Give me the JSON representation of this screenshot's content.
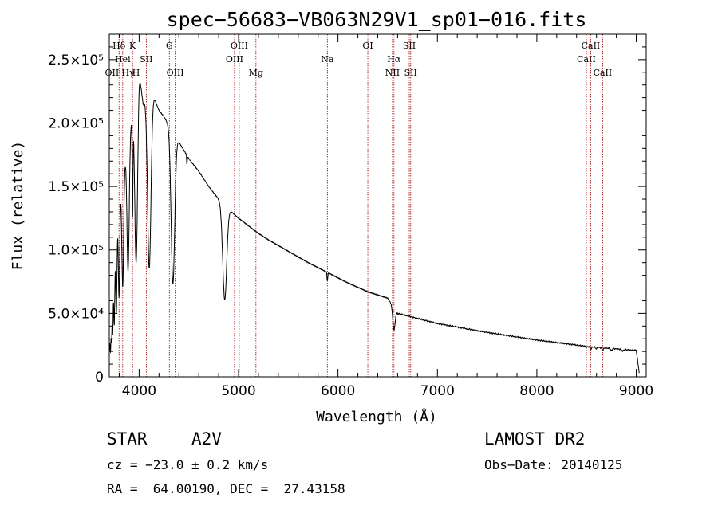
{
  "footer": {
    "object_class": "STAR",
    "subclass": "A2V",
    "survey": "LAMOST DR2",
    "redshift": "cz = −23.0 ± 0.2 km/s",
    "obs_date": "Obs−Date: 20140125",
    "coords": "RA =  64.00190, DEC =  27.43158"
  },
  "chart_data": {
    "type": "line",
    "title": "spec−56683−VB063N29V1_sp01−016.fits",
    "xlabel": "Wavelength (Å)",
    "ylabel": "Flux (relative)",
    "xlim": [
      3700,
      9100
    ],
    "ylim": [
      0,
      270000
    ],
    "x_ticks": [
      4000,
      5000,
      6000,
      7000,
      8000,
      9000
    ],
    "x_tick_labels": [
      "4000",
      "5000",
      "6000",
      "7000",
      "8000",
      "9000"
    ],
    "y_ticks": [
      0,
      50000,
      100000,
      150000,
      200000,
      250000
    ],
    "y_tick_labels": [
      "0",
      "5.0×10⁴",
      "1.0×10⁵",
      "1.5×10⁵",
      "2.0×10⁵",
      "2.5×10⁵"
    ],
    "spectral_lines": [
      {
        "label": "Hδ",
        "wavelength": 3798,
        "row": 1
      },
      {
        "label": "OII",
        "wavelength": 3727,
        "row": 3
      },
      {
        "label": "Hei",
        "wavelength": 3835,
        "row": 2
      },
      {
        "label": "Hγ",
        "wavelength": 3889,
        "row": 3
      },
      {
        "label": "K",
        "wavelength": 3934,
        "row": 1
      },
      {
        "label": "H",
        "wavelength": 3969,
        "row": 3
      },
      {
        "label": "SII",
        "wavelength": 4072,
        "row": 2
      },
      {
        "label": "G",
        "wavelength": 4304,
        "row": 1
      },
      {
        "label": "OIII",
        "wavelength": 4363,
        "row": 3
      },
      {
        "label": "OIII",
        "wavelength": 4959,
        "row": 2
      },
      {
        "label": "OIII",
        "wavelength": 5007,
        "row": 1
      },
      {
        "label": "Mg",
        "wavelength": 5175,
        "row": 3
      },
      {
        "label": "Na",
        "wavelength": 5893,
        "row": 2
      },
      {
        "label": "OI",
        "wavelength": 6300,
        "row": 1
      },
      {
        "label": "NII",
        "wavelength": 6548,
        "row": 3
      },
      {
        "label": "Hα",
        "wavelength": 6563,
        "row": 2
      },
      {
        "label": "SII",
        "wavelength": 6717,
        "row": 1
      },
      {
        "label": "SII",
        "wavelength": 6731,
        "row": 3
      },
      {
        "label": "CaII",
        "wavelength": 8498,
        "row": 2
      },
      {
        "label": "CaII",
        "wavelength": 8542,
        "row": 1
      },
      {
        "label": "CaII",
        "wavelength": 8662,
        "row": 3
      }
    ],
    "series": [
      {
        "name": "spectrum",
        "continuum": [
          [
            3700,
            20000
          ],
          [
            3720,
            60000
          ],
          [
            3760,
            100000
          ],
          [
            3800,
            140000
          ],
          [
            3850,
            165000
          ],
          [
            3900,
            190000
          ],
          [
            3950,
            215000
          ],
          [
            4000,
            240000
          ],
          [
            4040,
            215000
          ],
          [
            4100,
            225000
          ],
          [
            4150,
            220000
          ],
          [
            4200,
            210000
          ],
          [
            4250,
            205000
          ],
          [
            4300,
            198000
          ],
          [
            4400,
            185000
          ],
          [
            4500,
            172000
          ],
          [
            4600,
            162000
          ],
          [
            4700,
            150000
          ],
          [
            4800,
            140000
          ],
          [
            4900,
            132000
          ],
          [
            5000,
            125000
          ],
          [
            5100,
            119000
          ],
          [
            5200,
            113000
          ],
          [
            5300,
            108000
          ],
          [
            5500,
            99000
          ],
          [
            5700,
            90000
          ],
          [
            5900,
            82000
          ],
          [
            6100,
            74000
          ],
          [
            6300,
            67000
          ],
          [
            6500,
            62000
          ],
          [
            6600,
            50000
          ],
          [
            6700,
            48000
          ],
          [
            7000,
            42000
          ],
          [
            7500,
            35000
          ],
          [
            8000,
            29000
          ],
          [
            8500,
            24000
          ],
          [
            8800,
            22000
          ],
          [
            8950,
            21000
          ],
          [
            9000,
            21000
          ],
          [
            9030,
            3000
          ]
        ],
        "absorption_lines": [
          {
            "wavelength": 3712,
            "depth": 0.55,
            "width": 4
          },
          {
            "wavelength": 3722,
            "depth": 0.55,
            "width": 4
          },
          {
            "wavelength": 3734,
            "depth": 0.55,
            "width": 5
          },
          {
            "wavelength": 3750,
            "depth": 0.55,
            "width": 5
          },
          {
            "wavelength": 3771,
            "depth": 0.55,
            "width": 6
          },
          {
            "wavelength": 3798,
            "depth": 0.55,
            "width": 7
          },
          {
            "wavelength": 3835,
            "depth": 0.55,
            "width": 9
          },
          {
            "wavelength": 3889,
            "depth": 0.55,
            "width": 11
          },
          {
            "wavelength": 3934,
            "depth": 0.38,
            "width": 4
          },
          {
            "wavelength": 3970,
            "depth": 0.6,
            "width": 14
          },
          {
            "wavelength": 4102,
            "depth": 0.62,
            "width": 17
          },
          {
            "wavelength": 4340,
            "depth": 0.62,
            "width": 18
          },
          {
            "wavelength": 4481,
            "depth": 0.04,
            "width": 3
          },
          {
            "wavelength": 4861,
            "depth": 0.55,
            "width": 20
          },
          {
            "wavelength": 5893,
            "depth": 0.08,
            "width": 4
          },
          {
            "wavelength": 6563,
            "depth": 0.32,
            "width": 12
          },
          {
            "wavelength": 8498,
            "depth": 0.05,
            "width": 5
          },
          {
            "wavelength": 8542,
            "depth": 0.08,
            "width": 8
          },
          {
            "wavelength": 8598,
            "depth": 0.06,
            "width": 6
          },
          {
            "wavelength": 8662,
            "depth": 0.08,
            "width": 8
          },
          {
            "wavelength": 8750,
            "depth": 0.07,
            "width": 8
          },
          {
            "wavelength": 8863,
            "depth": 0.06,
            "width": 8
          }
        ]
      }
    ]
  }
}
